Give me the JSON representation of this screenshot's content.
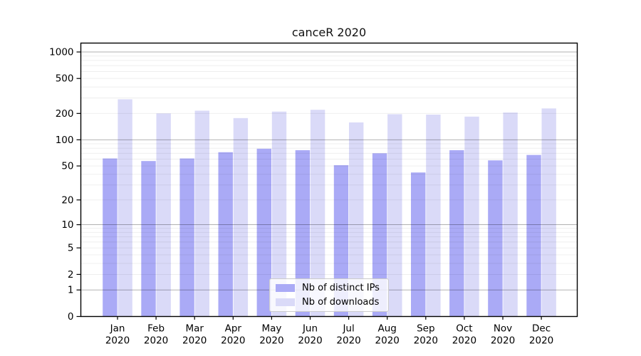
{
  "title": "canceR 2020",
  "chart_data": {
    "type": "bar",
    "title": "canceR 2020",
    "categories": [
      "Jan",
      "Feb",
      "Mar",
      "Apr",
      "May",
      "Jun",
      "Jul",
      "Aug",
      "Sep",
      "Oct",
      "Nov",
      "Dec"
    ],
    "category_year": "2020",
    "series": [
      {
        "name": "Nb of distinct IPs",
        "color": "#aaaaf6",
        "values": [
          61,
          57,
          61,
          72,
          79,
          76,
          51,
          70,
          42,
          76,
          58,
          67
        ]
      },
      {
        "name": "Nb of downloads",
        "color": "#dadaf8",
        "values": [
          290,
          200,
          215,
          177,
          210,
          220,
          158,
          196,
          194,
          184,
          205,
          228
        ]
      }
    ],
    "yscale": "log1p",
    "yticks": [
      0,
      1,
      2,
      5,
      10,
      20,
      50,
      100,
      200,
      500,
      1000
    ],
    "ylim": [
      0,
      1265
    ],
    "xlabel": "",
    "ylabel": "",
    "grid": "horizontal",
    "legend_position": "bottom-center"
  }
}
